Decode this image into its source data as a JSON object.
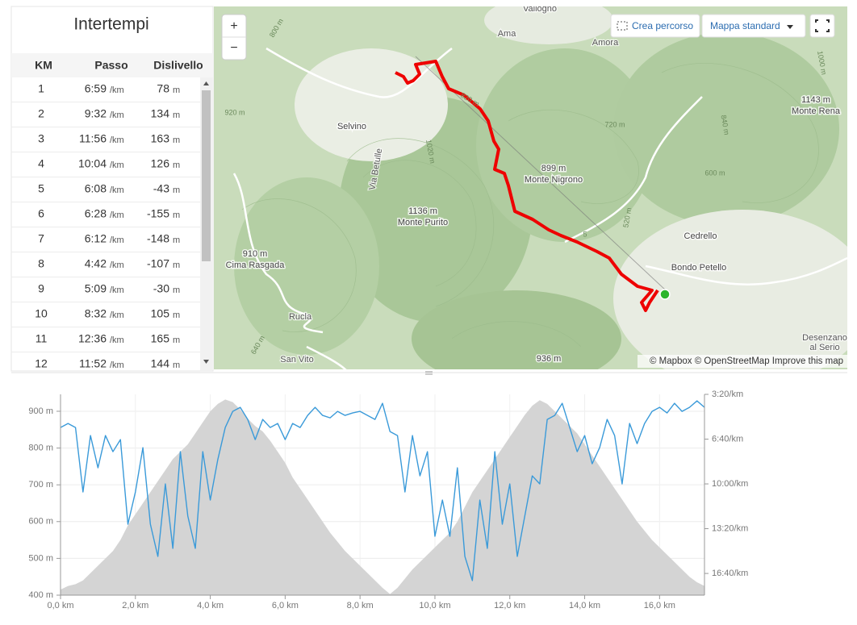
{
  "splits": {
    "title": "Intertempi",
    "headers": [
      "KM",
      "Passo",
      "Dislivello"
    ],
    "pace_unit": "/km",
    "elev_unit": "m",
    "rows": [
      {
        "km": 1,
        "pace": "6:59",
        "elev": 78
      },
      {
        "km": 2,
        "pace": "9:32",
        "elev": 134
      },
      {
        "km": 3,
        "pace": "11:56",
        "elev": 163
      },
      {
        "km": 4,
        "pace": "10:04",
        "elev": 126
      },
      {
        "km": 5,
        "pace": "6:08",
        "elev": -43
      },
      {
        "km": 6,
        "pace": "6:28",
        "elev": -155
      },
      {
        "km": 7,
        "pace": "6:12",
        "elev": -148
      },
      {
        "km": 8,
        "pace": "4:42",
        "elev": -107
      },
      {
        "km": 9,
        "pace": "5:09",
        "elev": -30
      },
      {
        "km": 10,
        "pace": "8:32",
        "elev": 105
      },
      {
        "km": 11,
        "pace": "12:36",
        "elev": 165
      },
      {
        "km": 12,
        "pace": "11:52",
        "elev": 144
      }
    ]
  },
  "map": {
    "zoom_in": "+",
    "zoom_out": "−",
    "create_route": "Crea percorso",
    "style": "Mappa standard",
    "attribution": "© Mapbox © OpenStreetMap Improve this map",
    "labels": [
      "Vallogno",
      "Ama",
      "Amora",
      "Selvino",
      "Via Betulle",
      "1136 m",
      "Monte Purito",
      "899 m",
      "Monte Nigrono",
      "1143 m",
      "Monte Rena",
      "910 m",
      "Cima Rasgada",
      "Rucla",
      "San Vito",
      "Cedrello",
      "Bondo Petello",
      "Desenzano",
      "al Serio",
      "936 m",
      "800 m",
      "920 m",
      "1020 m",
      "820 m",
      "720 m",
      "600 m",
      "840 m",
      "1000 m",
      "520 m",
      "640 m",
      "5"
    ]
  },
  "chart_data": {
    "type": "line",
    "x": [
      0,
      0.2,
      0.4,
      0.6,
      0.8,
      1,
      1.2,
      1.4,
      1.6,
      1.8,
      2,
      2.2,
      2.4,
      2.6,
      2.8,
      3,
      3.2,
      3.4,
      3.6,
      3.8,
      4,
      4.2,
      4.4,
      4.6,
      4.8,
      5,
      5.2,
      5.4,
      5.6,
      5.8,
      6,
      6.2,
      6.4,
      6.6,
      6.8,
      7,
      7.2,
      7.4,
      7.6,
      7.8,
      8,
      8.2,
      8.4,
      8.6,
      8.8,
      9,
      9.2,
      9.4,
      9.6,
      9.8,
      10,
      10.2,
      10.4,
      10.6,
      10.8,
      11,
      11.2,
      11.4,
      11.6,
      11.8,
      12,
      12.2,
      12.4,
      12.6,
      12.8,
      13,
      13.2,
      13.4,
      13.6,
      13.8,
      14,
      14.2,
      14.4,
      14.6,
      14.8,
      15,
      15.2,
      15.4,
      15.6,
      15.8,
      16,
      16.2,
      16.4,
      16.6,
      16.8,
      17,
      17.2
    ],
    "series": [
      {
        "color": "#d4d4d4",
        "kind": "area",
        "values": [
          415,
          425,
          430,
          440,
          460,
          480,
          500,
          520,
          550,
          590,
          620,
          650,
          680,
          710,
          740,
          770,
          790,
          810,
          840,
          870,
          900,
          920,
          932,
          925,
          905,
          880,
          860,
          845,
          820,
          790,
          760,
          720,
          690,
          660,
          630,
          600,
          570,
          545,
          520,
          500,
          480,
          460,
          440,
          420,
          403,
          420,
          445,
          470,
          490,
          510,
          530,
          550,
          570,
          600,
          640,
          680,
          710,
          740,
          770,
          800,
          830,
          860,
          890,
          915,
          930,
          920,
          900,
          880,
          860,
          840,
          810,
          780,
          750,
          720,
          690,
          660,
          630,
          600,
          575,
          550,
          530,
          510,
          490,
          470,
          450,
          435,
          425
        ]
      },
      {
        "color": "#3a9ad9",
        "kind": "line",
        "axis": "y2",
        "values": [
          348,
          330,
          348,
          636,
          384,
          528,
          384,
          456,
          402,
          780,
          636,
          438,
          780,
          924,
          600,
          888,
          456,
          744,
          888,
          456,
          672,
          492,
          348,
          276,
          258,
          312,
          402,
          312,
          348,
          330,
          402,
          330,
          348,
          294,
          258,
          294,
          305,
          276,
          294,
          283,
          276,
          294,
          312,
          240,
          366,
          384,
          636,
          384,
          564,
          456,
          834,
          672,
          834,
          528,
          924,
          1032,
          672,
          888,
          456,
          780,
          600,
          924,
          744,
          564,
          600,
          312,
          294,
          240,
          348,
          456,
          384,
          510,
          438,
          312,
          384,
          600,
          330,
          420,
          330,
          276,
          258,
          283,
          240,
          276,
          258,
          229,
          258
        ]
      }
    ],
    "xlim": [
      0,
      17.2
    ],
    "xticks": [
      {
        "value": 0,
        "label": "0,0 km"
      },
      {
        "value": 2,
        "label": "2,0 km"
      },
      {
        "value": 4,
        "label": "4,0 km"
      },
      {
        "value": 6,
        "label": "6,0 km"
      },
      {
        "value": 8,
        "label": "8,0 km"
      },
      {
        "value": 10,
        "label": "10,0 km"
      },
      {
        "value": 12,
        "label": "12,0 km"
      },
      {
        "value": 14,
        "label": "14,0 km"
      },
      {
        "value": 16,
        "label": "16,0 km"
      }
    ],
    "ylim": [
      400,
      946
    ],
    "yticks": [
      {
        "value": 400,
        "label": "400 m"
      },
      {
        "value": 500,
        "label": "500 m"
      },
      {
        "value": 600,
        "label": "600 m"
      },
      {
        "value": 700,
        "label": "700 m"
      },
      {
        "value": 800,
        "label": "800 m"
      },
      {
        "value": 900,
        "label": "900 m"
      }
    ],
    "y2lim": [
      1097,
      200
    ],
    "y2ticks": [
      {
        "value": 200,
        "label": "3:20/km"
      },
      {
        "value": 400,
        "label": "6:40/km"
      },
      {
        "value": 600,
        "label": "10:00/km"
      },
      {
        "value": 800,
        "label": "13:20/km"
      },
      {
        "value": 1000,
        "label": "16:40/km"
      }
    ],
    "grid": true
  }
}
